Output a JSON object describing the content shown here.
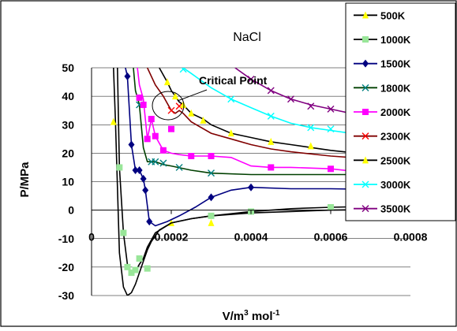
{
  "chart_data": {
    "type": "line",
    "title": "NaCl",
    "xlabel": "V/m",
    "xlabel_sup1": "3",
    "xlabel_mid": " mol",
    "xlabel_sup2": "-1",
    "ylabel": "P/MPa",
    "xlim": [
      0,
      0.0008
    ],
    "ylim": [
      -30,
      50
    ],
    "x_ticks": [
      0,
      0.0002,
      0.0004,
      0.0006,
      0.0008
    ],
    "x_tick_labels": [
      "0",
      "0.0002",
      "0.0004",
      "0.0006",
      "0.0008"
    ],
    "y_ticks": [
      -30,
      -20,
      -10,
      0,
      10,
      20,
      30,
      40,
      50
    ],
    "y_tick_labels": [
      "-30",
      "-20",
      "-10",
      "0",
      "10",
      "20",
      "30",
      "40",
      "50"
    ],
    "grid": "horizontal",
    "legend_position": "top-right",
    "annotation": {
      "text": "Critical Point",
      "x": 0.00022,
      "y": 37
    },
    "series": [
      {
        "name": "500K",
        "color": "#000000",
        "marker": "triangle",
        "marker_color": "#ffff00",
        "x": [
          5.5e-05,
          6e-05,
          7e-05,
          8e-05,
          9e-05,
          0.0001,
          0.00011,
          0.00012,
          0.00013,
          0.00014,
          0.00015,
          0.00017,
          0.0002,
          0.00025,
          0.0003,
          0.0004,
          0.0005,
          0.0006,
          0.0007,
          0.0008
        ],
        "y": [
          50,
          31,
          -15,
          -27,
          -30,
          -29,
          -26,
          -22,
          -18,
          -14,
          -11,
          -7,
          -4.5,
          -3,
          -2,
          -1,
          -0.5,
          0,
          0.2,
          0.3
        ],
        "markers": [
          [
            5.5e-05,
            31
          ],
          [
            0.0002,
            -4.5
          ],
          [
            0.0003,
            -4.5
          ]
        ]
      },
      {
        "name": "1000K",
        "color": "#000000",
        "marker": "square",
        "marker_color": "#99e699",
        "x": [
          6.5e-05,
          7e-05,
          8e-05,
          9e-05,
          0.0001,
          0.00011,
          0.00012,
          0.00013,
          0.00014,
          0.00016,
          0.0002,
          0.00025,
          0.0003,
          0.0004,
          0.0005,
          0.0006,
          0.0007,
          0.0008
        ],
        "y": [
          50,
          15,
          -8,
          -19,
          -22,
          -21.5,
          -19,
          -17,
          -13,
          -8,
          -4.5,
          -3,
          -2,
          -0.5,
          0.5,
          1,
          1.3,
          1.5
        ],
        "markers": [
          [
            7e-05,
            15
          ],
          [
            8e-05,
            -8
          ],
          [
            9e-05,
            -20
          ],
          [
            0.0001,
            -22
          ],
          [
            0.00011,
            -21
          ],
          [
            0.00012,
            -17
          ],
          [
            0.00014,
            -20.5
          ],
          [
            0.0003,
            -2
          ],
          [
            0.0004,
            -0.5
          ],
          [
            0.0006,
            1
          ],
          [
            0.00073,
            1.3
          ]
        ]
      },
      {
        "name": "1500K",
        "color": "#000080",
        "marker": "diamond",
        "marker_color": "#000080",
        "x": [
          8.5e-05,
          9e-05,
          0.0001,
          0.00011,
          0.00012,
          0.00013,
          0.000135,
          0.000145,
          0.00016,
          0.00019,
          0.00022,
          0.00026,
          0.0003,
          0.00035,
          0.0004,
          0.0005,
          0.0006,
          0.0007,
          0.0008
        ],
        "y": [
          50,
          47,
          23,
          14,
          14,
          11,
          7,
          -4,
          -5.5,
          -4,
          -2,
          1,
          4.5,
          7,
          8,
          7.5,
          7.5,
          7.3,
          7.2
        ],
        "markers": [
          [
            9e-05,
            47
          ],
          [
            0.0001,
            23
          ],
          [
            0.00011,
            14
          ],
          [
            0.00012,
            14
          ],
          [
            0.00013,
            11
          ],
          [
            0.000135,
            7
          ],
          [
            0.000145,
            -4
          ],
          [
            0.0003,
            4.5
          ],
          [
            0.0004,
            8
          ]
        ]
      },
      {
        "name": "1800K",
        "color": "#004000",
        "marker": "x",
        "marker_color": "#008080",
        "x": [
          0.000105,
          0.00011,
          0.00012,
          0.00013,
          0.00014,
          0.00015,
          0.00016,
          0.00018,
          0.0002,
          0.00025,
          0.0003,
          0.0004,
          0.0005,
          0.0006,
          0.0007,
          0.0008
        ],
        "y": [
          50,
          42,
          37,
          22,
          17,
          17,
          17,
          16,
          15.5,
          14,
          13,
          12.5,
          12.5,
          12.5,
          12.5,
          12.5
        ],
        "markers": [
          [
            0.00012,
            37
          ],
          [
            0.00015,
            17
          ],
          [
            0.00016,
            17
          ],
          [
            0.00018,
            16.5
          ],
          [
            0.00022,
            15
          ],
          [
            0.0003,
            13
          ]
        ]
      },
      {
        "name": "2000K",
        "color": "#ff00ff",
        "marker": "square",
        "marker_color": "#ff00ff",
        "x": [
          0.000115,
          0.00012,
          0.00013,
          0.00014,
          0.00015,
          0.00016,
          0.00018,
          0.0002,
          0.00022,
          0.00025,
          0.0003,
          0.00035,
          0.0004,
          0.00045,
          0.0005,
          0.0006,
          0.0007,
          0.0008
        ],
        "y": [
          50,
          44,
          39,
          25,
          32,
          26,
          21,
          20,
          19.5,
          19,
          19,
          18.5,
          15.5,
          15,
          15,
          14.5,
          13,
          12
        ],
        "markers": [
          [
            0.00012,
            39.5
          ],
          [
            0.00013,
            37
          ],
          [
            0.00014,
            25
          ],
          [
            0.00015,
            32
          ],
          [
            0.00016,
            26
          ],
          [
            0.00018,
            21
          ],
          [
            0.0002,
            28.5
          ],
          [
            0.00025,
            19
          ],
          [
            0.0003,
            19
          ],
          [
            0.00045,
            15
          ],
          [
            0.0006,
            14.5
          ]
        ]
      },
      {
        "name": "2300K",
        "color": "#800000",
        "marker": "x",
        "marker_color": "#ff0000",
        "x": [
          0.00014,
          0.00016,
          0.00018,
          0.0002,
          0.00021,
          0.00022,
          0.00023,
          0.00025,
          0.0003,
          0.00035,
          0.0004,
          0.00045,
          0.0005,
          0.0006,
          0.0007,
          0.0008
        ],
        "y": [
          50,
          44,
          40,
          35,
          34,
          35,
          34,
          31,
          27,
          25,
          23,
          21.5,
          20.5,
          19,
          18,
          17
        ],
        "markers": [
          [
            0.0002,
            35
          ],
          [
            0.00022,
            36.5
          ]
        ]
      },
      {
        "name": "2500K",
        "color": "#000000",
        "marker": "triangle",
        "marker_color": "#ffff00",
        "x": [
          0.00017,
          0.00019,
          0.0002,
          0.00021,
          0.00022,
          0.00023,
          0.00025,
          0.00028,
          0.0003,
          0.00035,
          0.0004,
          0.00045,
          0.0005,
          0.0006,
          0.0007,
          0.0008
        ],
        "y": [
          50,
          45,
          42,
          40,
          38,
          37,
          34,
          32,
          30,
          27,
          25.5,
          24,
          23,
          21,
          19.5,
          18.5
        ],
        "markers": [
          [
            0.00019,
            45
          ],
          [
            0.00021,
            40
          ],
          [
            0.00023,
            37
          ],
          [
            0.00025,
            34
          ],
          [
            0.00028,
            31.5
          ],
          [
            0.00035,
            27
          ],
          [
            0.00045,
            24
          ],
          [
            0.00055,
            22.5
          ],
          [
            0.00065,
            20.5
          ],
          [
            0.00075,
            19
          ]
        ]
      },
      {
        "name": "3000K",
        "color": "#00ffff",
        "marker": "x",
        "marker_color": "#00ffff",
        "x": [
          0.00023,
          0.00025,
          0.0003,
          0.00035,
          0.0004,
          0.00045,
          0.0005,
          0.00055,
          0.0006,
          0.00065,
          0.0007,
          0.00075,
          0.0008
        ],
        "y": [
          50,
          48,
          43,
          39,
          36,
          33,
          30.5,
          29,
          28,
          27,
          25.5,
          24,
          23
        ],
        "markers": [
          [
            0.00023,
            49.5
          ],
          [
            0.00035,
            39
          ],
          [
            0.00045,
            33
          ],
          [
            0.00055,
            29
          ],
          [
            0.0006,
            28.5
          ],
          [
            0.00065,
            27.5
          ],
          [
            0.00075,
            25
          ]
        ]
      },
      {
        "name": "3500K",
        "color": "#800080",
        "marker": "x",
        "marker_color": "#800080",
        "x": [
          0.00036,
          0.0004,
          0.00045,
          0.0005,
          0.00055,
          0.0006,
          0.00065,
          0.0007,
          0.00075,
          0.0008
        ],
        "y": [
          50,
          46,
          42,
          39,
          37,
          35.5,
          34,
          32.5,
          31,
          30
        ],
        "markers": [
          [
            0.0004,
            46
          ],
          [
            0.00045,
            42
          ],
          [
            0.0005,
            39
          ],
          [
            0.00055,
            36.5
          ],
          [
            0.0006,
            35.5
          ],
          [
            0.00065,
            34
          ],
          [
            0.0007,
            32.5
          ],
          [
            0.00075,
            31
          ]
        ]
      }
    ]
  }
}
